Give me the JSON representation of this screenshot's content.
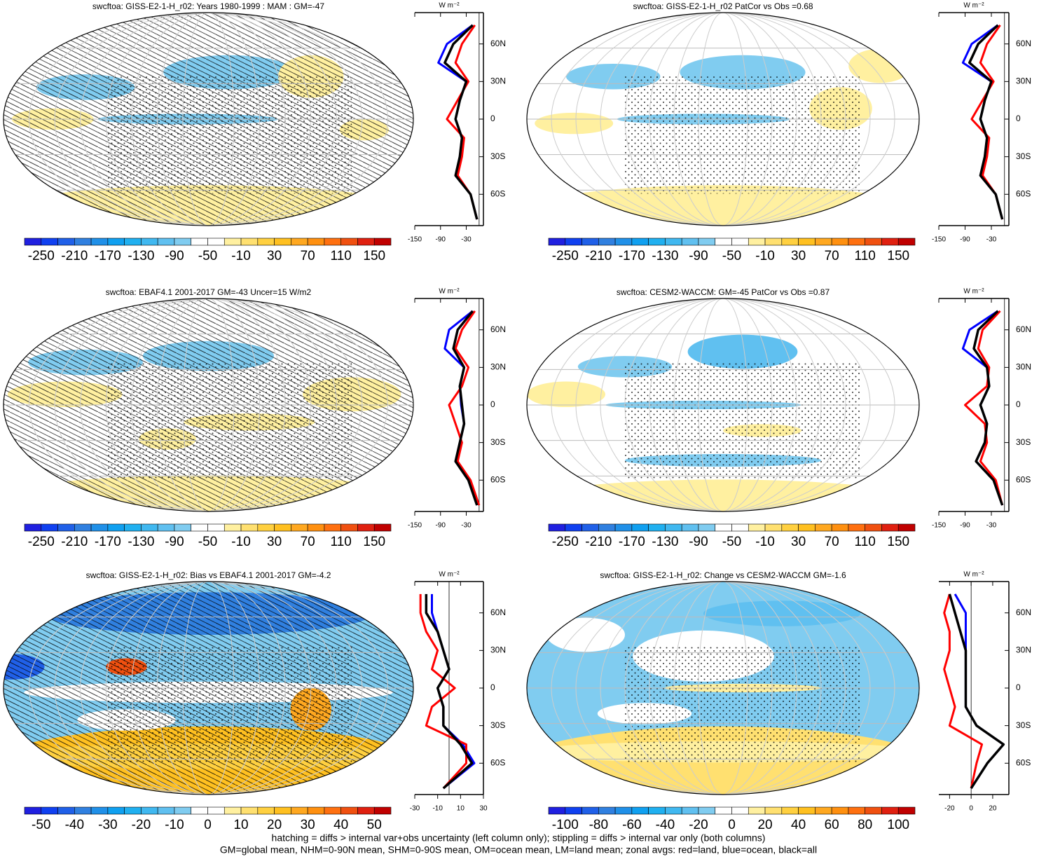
{
  "chart_data": [
    {
      "type": "map",
      "title": "swcftoa: GISS-E2-1-H_r02: Years 1980-1999 : MAM : GM=-47",
      "colorbar_ticks": [
        -250,
        -210,
        -170,
        -130,
        -90,
        -50,
        -10,
        30,
        70,
        110,
        150
      ],
      "zonal_unit": "W m⁻²",
      "lats": [
        -80,
        -60,
        -45,
        -30,
        -15,
        0,
        15,
        30,
        45,
        60,
        75
      ],
      "xlim": [
        -150,
        10
      ],
      "xticks": [
        -150,
        -90,
        -30
      ],
      "ylim": [
        -85,
        85
      ],
      "yticks": [
        {
          "value": 60,
          "label": "60N"
        },
        {
          "value": 30,
          "label": "30N"
        },
        0,
        {
          "value": -30,
          "label": "30S"
        },
        {
          "value": -60,
          "label": "60S"
        }
      ],
      "series": [
        {
          "color": "#0000ff",
          "values": [
            -5,
            -20,
            -55,
            -45,
            -40,
            -55,
            -45,
            -30,
            -95,
            -75,
            -15
          ]
        },
        {
          "color": "#ff0000",
          "values": [
            -5,
            -20,
            -50,
            -40,
            -35,
            -75,
            -50,
            -25,
            -55,
            -40,
            -10
          ]
        },
        {
          "color": "#000000",
          "values": [
            -5,
            -20,
            -55,
            -45,
            -40,
            -55,
            -45,
            -30,
            -80,
            -60,
            -15
          ]
        }
      ]
    },
    {
      "type": "map",
      "title": "swcftoa: GISS-E2-1-H_r02 PatCor vs Obs =0.68",
      "colorbar_ticks": [
        -250,
        -210,
        -170,
        -130,
        -90,
        -50,
        -10,
        30,
        70,
        110,
        150
      ],
      "zonal_unit": "W m⁻²",
      "lats": [
        -80,
        -60,
        -45,
        -30,
        -15,
        0,
        15,
        30,
        45,
        60,
        75
      ],
      "xlim": [
        -150,
        10
      ],
      "xticks": [
        -150,
        -90,
        -30
      ],
      "ylim": [
        -85,
        85
      ],
      "yticks": [
        {
          "value": 60,
          "label": "60N"
        },
        {
          "value": 30,
          "label": "30N"
        },
        0,
        {
          "value": -30,
          "label": "30S"
        },
        {
          "value": -60,
          "label": "60S"
        }
      ],
      "series": [
        {
          "color": "#0000ff",
          "values": [
            -5,
            -20,
            -55,
            -45,
            -40,
            -55,
            -45,
            -30,
            -95,
            -75,
            -15
          ]
        },
        {
          "color": "#ff0000",
          "values": [
            -5,
            -20,
            -50,
            -40,
            -35,
            -75,
            -50,
            -25,
            -55,
            -40,
            -10
          ]
        },
        {
          "color": "#000000",
          "values": [
            -5,
            -20,
            -55,
            -45,
            -40,
            -55,
            -45,
            -30,
            -80,
            -60,
            -15
          ]
        }
      ]
    },
    {
      "type": "map",
      "title": "swcftoa: EBAF4.1 2001-2017 GM=-43 Uncer=15 W/m2",
      "colorbar_ticks": [
        -250,
        -210,
        -170,
        -130,
        -90,
        -50,
        -10,
        30,
        70,
        110,
        150
      ],
      "zonal_unit": "W m⁻²",
      "lats": [
        -80,
        -60,
        -45,
        -30,
        -15,
        0,
        15,
        30,
        45,
        60,
        75
      ],
      "xlim": [
        -150,
        10
      ],
      "xticks": [
        -150,
        -90,
        -30
      ],
      "ylim": [
        -85,
        85
      ],
      "yticks": [
        {
          "value": 60,
          "label": "60N"
        },
        {
          "value": 30,
          "label": "30N"
        },
        0,
        {
          "value": -30,
          "label": "30S"
        },
        {
          "value": -60,
          "label": "60S"
        }
      ],
      "series": [
        {
          "color": "#0000ff",
          "values": [
            -5,
            -25,
            -55,
            -45,
            -35,
            -42,
            -45,
            -35,
            -80,
            -70,
            -15
          ]
        },
        {
          "color": "#ff0000",
          "values": [
            0,
            -20,
            -50,
            -40,
            -55,
            -70,
            -40,
            -25,
            -55,
            -40,
            -10
          ]
        },
        {
          "color": "#000000",
          "values": [
            -5,
            -25,
            -55,
            -45,
            -35,
            -40,
            -45,
            -35,
            -60,
            -50,
            -15
          ]
        }
      ]
    },
    {
      "type": "map",
      "title": "swcftoa: CESM2-WACCM: GM=-45 PatCor vs Obs =0.87",
      "colorbar_ticks": [
        -250,
        -210,
        -170,
        -130,
        -90,
        -50,
        -10,
        30,
        70,
        110,
        150
      ],
      "zonal_unit": "W m⁻²",
      "lats": [
        -80,
        -60,
        -45,
        -30,
        -15,
        0,
        15,
        30,
        45,
        60,
        75
      ],
      "xlim": [
        -150,
        10
      ],
      "xticks": [
        -150,
        -90,
        -30
      ],
      "ylim": [
        -85,
        85
      ],
      "yticks": [
        {
          "value": 60,
          "label": "60N"
        },
        {
          "value": 30,
          "label": "30N"
        },
        0,
        {
          "value": -30,
          "label": "30S"
        },
        {
          "value": -60,
          "label": "60S"
        }
      ],
      "series": [
        {
          "color": "#0000ff",
          "values": [
            -5,
            -25,
            -65,
            -45,
            -40,
            -55,
            -35,
            -40,
            -95,
            -80,
            -15
          ]
        },
        {
          "color": "#ff0000",
          "values": [
            -5,
            -20,
            -55,
            -40,
            -45,
            -90,
            -40,
            -35,
            -60,
            -50,
            -10
          ]
        },
        {
          "color": "#000000",
          "values": [
            -5,
            -25,
            -65,
            -45,
            -40,
            -55,
            -35,
            -40,
            -70,
            -60,
            -15
          ]
        }
      ]
    },
    {
      "type": "map",
      "title": "swcftoa: GISS-E2-1-H_r02: Bias vs EBAF4.1 2001-2017 GM=-4.2",
      "colorbar_ticks": [
        -50,
        -40,
        -30,
        -20,
        -10,
        0,
        10,
        20,
        30,
        40,
        50
      ],
      "zonal_unit": "W m⁻²",
      "lats": [
        -80,
        -60,
        -45,
        -30,
        -15,
        0,
        15,
        30,
        45,
        60,
        75
      ],
      "xlim": [
        -30,
        30
      ],
      "xticks": [
        -30,
        -10,
        10,
        30
      ],
      "ylim": [
        -85,
        85
      ],
      "yticks": [
        {
          "value": 60,
          "label": "60N"
        },
        {
          "value": 30,
          "label": "30N"
        },
        0,
        {
          "value": -30,
          "label": "30S"
        },
        {
          "value": -60,
          "label": "60S"
        }
      ],
      "series": [
        {
          "color": "#0000ff",
          "values": [
            -5,
            22,
            12,
            -5,
            -5,
            -10,
            0,
            -5,
            -10,
            -15,
            -15
          ]
        },
        {
          "color": "#ff0000",
          "values": [
            -5,
            15,
            15,
            -20,
            -15,
            5,
            -15,
            -10,
            -20,
            -25,
            -25
          ]
        },
        {
          "color": "#000000",
          "values": [
            -5,
            20,
            10,
            -5,
            -5,
            -10,
            0,
            -5,
            -10,
            -20,
            -20
          ]
        }
      ]
    },
    {
      "type": "map",
      "title": "swcftoa: GISS-E2-1-H_r02: Change vs CESM2-WACCM GM=-1.6",
      "colorbar_ticks": [
        -100,
        -80,
        -60,
        -40,
        -20,
        0,
        20,
        40,
        60,
        80,
        100
      ],
      "zonal_unit": "W m⁻²",
      "lats": [
        -80,
        -60,
        -45,
        -30,
        -15,
        0,
        15,
        30,
        45,
        60,
        75
      ],
      "xlim": [
        -30,
        35
      ],
      "xticks": [
        -20,
        0,
        20
      ],
      "ylim": [
        -85,
        85
      ],
      "yticks": [
        {
          "value": 60,
          "label": "60N"
        },
        {
          "value": 30,
          "label": "30N"
        },
        0,
        {
          "value": -30,
          "label": "30S"
        },
        {
          "value": -60,
          "label": "60S"
        }
      ],
      "series": [
        {
          "color": "#0000ff",
          "values": [
            0,
            15,
            30,
            5,
            -5,
            -5,
            -5,
            -5,
            -5,
            -5,
            -15
          ]
        },
        {
          "color": "#ff0000",
          "values": [
            0,
            5,
            10,
            -20,
            -15,
            -20,
            -25,
            -20,
            -20,
            -25,
            -20
          ]
        },
        {
          "color": "#000000",
          "values": [
            0,
            15,
            30,
            5,
            -5,
            -5,
            -5,
            -5,
            -10,
            -15,
            -20
          ]
        }
      ]
    }
  ],
  "colorbar_colors": [
    "#2020e0",
    "#1040f0",
    "#2060e8",
    "#3080e0",
    "#2090e8",
    "#10a0f0",
    "#20b0f0",
    "#40b8f0",
    "#60c0f0",
    "#80ccf0",
    "#ffffff",
    "#ffffff",
    "#fff0a0",
    "#ffe070",
    "#ffd040",
    "#ffc020",
    "#ffa820",
    "#ff9010",
    "#ff7010",
    "#f05010",
    "#e02010",
    "#c00000"
  ],
  "notes": [
    "hatching = diffs > internal var+obs uncertainty (left column only); stippling = diffs > internal var only (both columns)",
    "GM=global mean, NHM=0-90N mean, SHM=0-90S mean, OM=ocean mean, LM=land mean; zonal avgs: red=land, blue=ocean, black=all"
  ]
}
